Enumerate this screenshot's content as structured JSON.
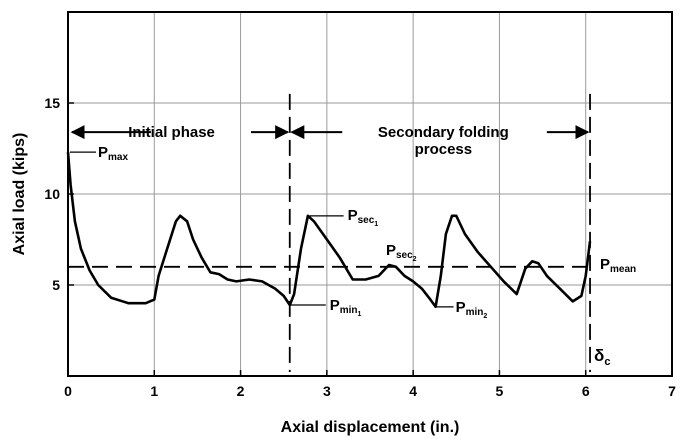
{
  "chart_data": {
    "type": "line",
    "xlabel": "Axial displacement (in.)",
    "ylabel": "Axial load (kips)",
    "xlim": [
      0,
      7
    ],
    "ylim": [
      0,
      20
    ],
    "xticks": [
      "0",
      "1",
      "2",
      "3",
      "4",
      "5",
      "6",
      "7"
    ],
    "yticks": [
      "5",
      "10",
      "15"
    ],
    "grid": true,
    "series": [
      {
        "x": [
          0.0,
          0.03,
          0.08,
          0.15,
          0.25,
          0.35,
          0.5,
          0.7,
          0.9,
          1.0,
          1.05,
          1.15,
          1.25,
          1.3,
          1.38,
          1.45,
          1.55,
          1.65,
          1.75,
          1.85,
          1.95,
          2.1,
          2.25,
          2.4,
          2.5,
          2.57,
          2.62,
          2.7,
          2.78,
          2.85,
          3.0,
          3.15,
          3.3,
          3.45,
          3.6,
          3.72,
          3.8,
          3.9,
          4.0,
          4.1,
          4.2,
          4.26,
          4.32,
          4.38,
          4.45,
          4.5,
          4.6,
          4.75,
          4.9,
          5.05,
          5.2,
          5.3,
          5.38,
          5.45,
          5.55,
          5.7,
          5.85,
          5.95,
          6.0,
          6.05
        ],
        "y": [
          12.3,
          10.5,
          8.5,
          7.0,
          5.8,
          5.0,
          4.3,
          4.0,
          4.0,
          4.2,
          5.5,
          7.0,
          8.5,
          8.8,
          8.5,
          7.5,
          6.5,
          5.7,
          5.6,
          5.3,
          5.2,
          5.3,
          5.2,
          4.8,
          4.4,
          3.9,
          4.5,
          7.0,
          8.8,
          8.5,
          7.5,
          6.5,
          5.3,
          5.3,
          5.5,
          6.1,
          6.0,
          5.5,
          5.2,
          4.8,
          4.2,
          3.8,
          5.5,
          7.8,
          8.8,
          8.8,
          7.8,
          6.8,
          6.0,
          5.2,
          4.5,
          5.9,
          6.3,
          6.2,
          5.5,
          4.8,
          4.1,
          4.4,
          5.5,
          7.4
        ]
      }
    ],
    "mean_line": {
      "y": 6
    },
    "vertical_markers": [
      {
        "x": 2.57
      },
      {
        "x": 6.05,
        "label": "δ",
        "subscript": "c"
      }
    ],
    "phases": [
      {
        "label": "Initial phase",
        "x_start": 0,
        "x_end": 2.57
      },
      {
        "label_lines": [
          "Secondary folding",
          "process"
        ],
        "x_start": 2.57,
        "x_end": 6.05
      }
    ],
    "annotations": [
      {
        "main": "P",
        "sub": "max",
        "x": 0.0,
        "y": 12.3
      },
      {
        "main": "P",
        "sub": "sec",
        "subsub": "1",
        "x": 2.8,
        "y": 8.8
      },
      {
        "main": "P",
        "sub": "sec",
        "subsub": "2",
        "x": 3.72,
        "y": 6.1
      },
      {
        "main": "P",
        "sub": "mean",
        "x": 6.05,
        "y": 6.0
      },
      {
        "main": "P",
        "sub": "min",
        "subsub": "1",
        "x": 2.57,
        "y": 3.9
      },
      {
        "main": "P",
        "sub": "min",
        "subsub": "2",
        "x": 4.26,
        "y": 3.8
      }
    ]
  }
}
